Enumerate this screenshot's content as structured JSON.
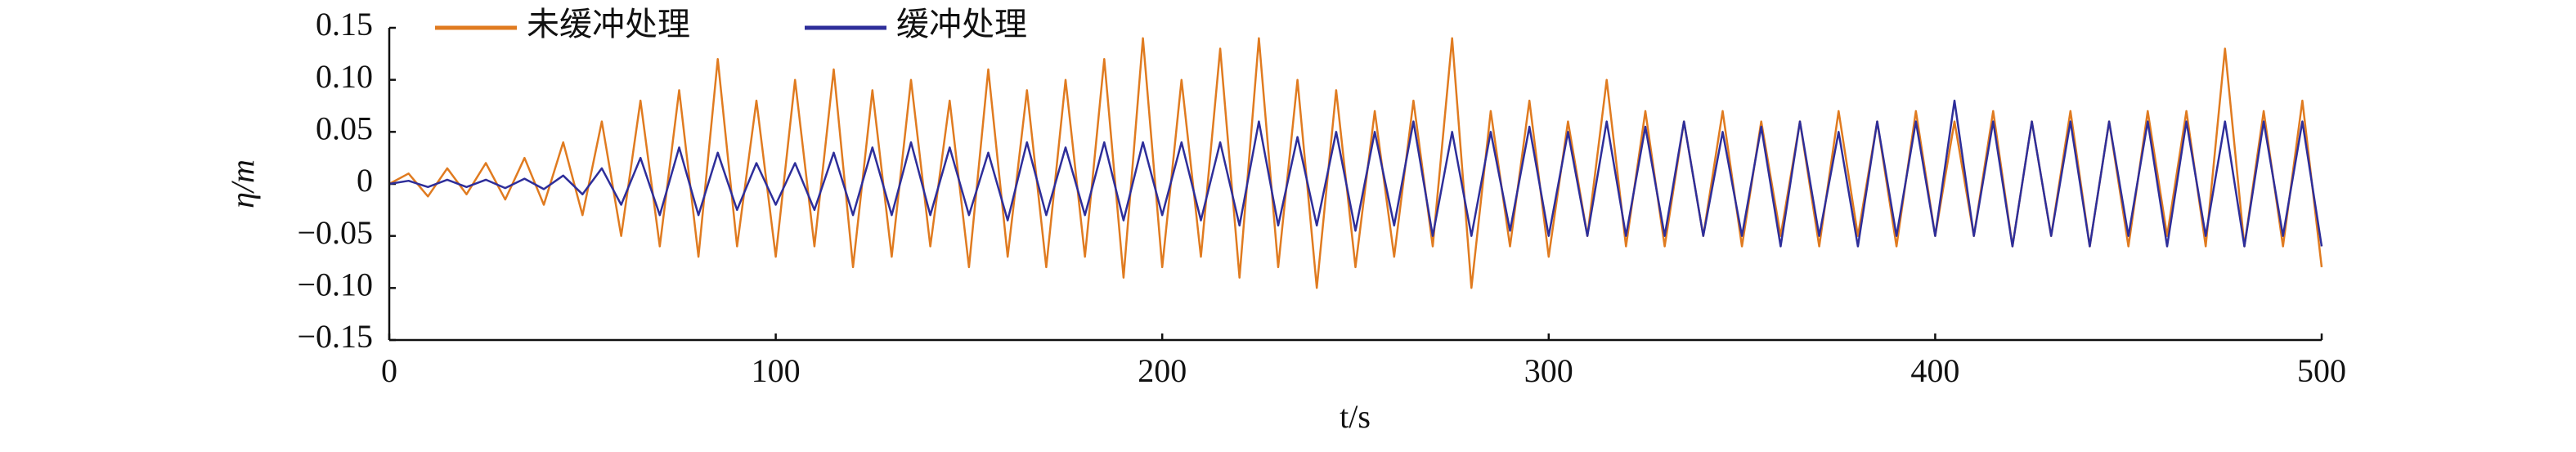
{
  "chart_data": {
    "type": "line",
    "xlabel": "t/s",
    "ylabel": "η/m",
    "x": [
      0,
      5,
      10,
      15,
      20,
      25,
      30,
      35,
      40,
      45,
      50,
      55,
      60,
      65,
      70,
      75,
      80,
      85,
      90,
      95,
      100,
      105,
      110,
      115,
      120,
      125,
      130,
      135,
      140,
      145,
      150,
      155,
      160,
      165,
      170,
      175,
      180,
      185,
      190,
      195,
      200,
      205,
      210,
      215,
      220,
      225,
      230,
      235,
      240,
      245,
      250,
      255,
      260,
      265,
      270,
      275,
      280,
      285,
      290,
      295,
      300,
      305,
      310,
      315,
      320,
      325,
      330,
      335,
      340,
      345,
      350,
      355,
      360,
      365,
      370,
      375,
      380,
      385,
      390,
      395,
      400,
      405,
      410,
      415,
      420,
      425,
      430,
      435,
      440,
      445,
      450,
      455,
      460,
      465,
      470,
      475,
      480,
      485,
      490,
      495,
      500
    ],
    "series": [
      {
        "name": "未缓冲处理",
        "color": "#e07b20",
        "values": [
          0,
          0.01,
          -0.012,
          0.015,
          -0.01,
          0.02,
          -0.015,
          0.025,
          -0.02,
          0.04,
          -0.03,
          0.06,
          -0.05,
          0.08,
          -0.06,
          0.09,
          -0.07,
          0.12,
          -0.06,
          0.08,
          -0.07,
          0.1,
          -0.06,
          0.11,
          -0.08,
          0.09,
          -0.07,
          0.1,
          -0.06,
          0.08,
          -0.08,
          0.11,
          -0.07,
          0.09,
          -0.08,
          0.1,
          -0.07,
          0.12,
          -0.09,
          0.14,
          -0.08,
          0.1,
          -0.07,
          0.13,
          -0.09,
          0.14,
          -0.08,
          0.1,
          -0.1,
          0.09,
          -0.08,
          0.07,
          -0.07,
          0.08,
          -0.06,
          0.14,
          -0.1,
          0.07,
          -0.06,
          0.08,
          -0.07,
          0.06,
          -0.05,
          0.1,
          -0.06,
          0.07,
          -0.06,
          0.06,
          -0.05,
          0.07,
          -0.06,
          0.06,
          -0.05,
          0.06,
          -0.06,
          0.07,
          -0.05,
          0.06,
          -0.06,
          0.07,
          -0.05,
          0.06,
          -0.05,
          0.07,
          -0.06,
          0.06,
          -0.05,
          0.07,
          -0.06,
          0.06,
          -0.06,
          0.07,
          -0.05,
          0.07,
          -0.06,
          0.13,
          -0.06,
          0.07,
          -0.06,
          0.08,
          -0.08
        ]
      },
      {
        "name": "缓冲处理",
        "color": "#2e2e9a",
        "values": [
          0,
          0.003,
          -0.003,
          0.004,
          -0.003,
          0.004,
          -0.004,
          0.005,
          -0.005,
          0.008,
          -0.01,
          0.015,
          -0.02,
          0.025,
          -0.03,
          0.035,
          -0.03,
          0.03,
          -0.025,
          0.02,
          -0.02,
          0.02,
          -0.025,
          0.03,
          -0.03,
          0.035,
          -0.03,
          0.04,
          -0.03,
          0.035,
          -0.03,
          0.03,
          -0.035,
          0.04,
          -0.03,
          0.035,
          -0.03,
          0.04,
          -0.035,
          0.04,
          -0.03,
          0.04,
          -0.035,
          0.04,
          -0.04,
          0.06,
          -0.04,
          0.045,
          -0.04,
          0.05,
          -0.045,
          0.05,
          -0.04,
          0.06,
          -0.05,
          0.05,
          -0.05,
          0.05,
          -0.045,
          0.055,
          -0.05,
          0.05,
          -0.05,
          0.06,
          -0.05,
          0.055,
          -0.05,
          0.06,
          -0.05,
          0.05,
          -0.05,
          0.055,
          -0.06,
          0.06,
          -0.05,
          0.05,
          -0.06,
          0.06,
          -0.05,
          0.06,
          -0.05,
          0.08,
          -0.05,
          0.06,
          -0.06,
          0.06,
          -0.05,
          0.06,
          -0.06,
          0.06,
          -0.05,
          0.06,
          -0.06,
          0.06,
          -0.05,
          0.06,
          -0.06,
          0.06,
          -0.05,
          0.06,
          -0.06
        ]
      }
    ],
    "xlim": [
      0,
      500
    ],
    "xticks": [
      0,
      100,
      200,
      300,
      400,
      500
    ],
    "ylim": [
      -0.15,
      0.15
    ],
    "yticks": [
      0.15,
      {
        "value": 0.1,
        "label": "0.10"
      },
      0.05,
      0,
      {
        "value": -0.05,
        "label": "−0.05"
      },
      {
        "value": -0.1,
        "label": "−0.10"
      },
      {
        "value": -0.15,
        "label": "−0.15"
      }
    ],
    "legend": "top-left"
  }
}
